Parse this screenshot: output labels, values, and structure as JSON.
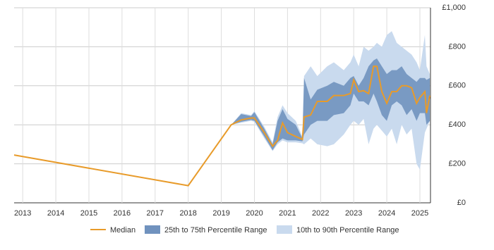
{
  "chart_data": {
    "type": "line",
    "x": [
      2012.74,
      2018.0,
      2019.3,
      2019.6,
      2019.9,
      2020.0,
      2020.3,
      2020.55,
      2020.7,
      2020.85,
      2021.0,
      2021.25,
      2021.45,
      2021.5,
      2021.7,
      2021.9,
      2022.2,
      2022.4,
      2022.7,
      2022.9,
      2023.0,
      2023.15,
      2023.3,
      2023.45,
      2023.6,
      2023.7,
      2023.85,
      2024.0,
      2024.15,
      2024.3,
      2024.45,
      2024.6,
      2024.75,
      2024.9,
      2025.0,
      2025.15,
      2025.2,
      2025.3
    ],
    "series": [
      {
        "name": "Median",
        "color": "#e89b2a",
        "values": [
          245,
          88,
          400,
          425,
          435,
          435,
          360,
          290,
          320,
          410,
          360,
          340,
          325,
          440,
          450,
          520,
          520,
          550,
          550,
          560,
          630,
          570,
          575,
          560,
          700,
          700,
          570,
          510,
          570,
          570,
          600,
          600,
          590,
          510,
          540,
          570,
          460,
          550
        ]
      },
      {
        "name": "25th to 75th Percentile Range",
        "color": "#7092be",
        "low": [
          null,
          null,
          400,
          415,
          425,
          420,
          340,
          270,
          310,
          330,
          320,
          320,
          315,
          350,
          400,
          420,
          420,
          450,
          460,
          500,
          560,
          520,
          520,
          500,
          560,
          520,
          450,
          420,
          500,
          520,
          500,
          450,
          480,
          420,
          460,
          460,
          400,
          420
        ],
        "high": [
          null,
          null,
          400,
          455,
          445,
          465,
          380,
          300,
          420,
          480,
          430,
          400,
          330,
          640,
          530,
          580,
          600,
          620,
          600,
          640,
          650,
          600,
          640,
          700,
          730,
          740,
          700,
          660,
          680,
          680,
          700,
          660,
          640,
          620,
          640,
          640,
          630,
          640
        ]
      },
      {
        "name": "10th to 90th Percentile Range",
        "color": "#c9daee",
        "low": [
          null,
          null,
          400,
          410,
          420,
          415,
          330,
          265,
          300,
          320,
          310,
          310,
          305,
          300,
          330,
          300,
          290,
          300,
          350,
          400,
          420,
          400,
          430,
          300,
          380,
          400,
          370,
          340,
          380,
          300,
          400,
          350,
          380,
          200,
          170,
          360,
          380,
          420
        ],
        "high": [
          null,
          null,
          400,
          460,
          450,
          470,
          390,
          310,
          440,
          500,
          460,
          420,
          340,
          650,
          700,
          650,
          700,
          720,
          680,
          720,
          760,
          700,
          800,
          780,
          800,
          820,
          800,
          860,
          880,
          820,
          800,
          780,
          760,
          720,
          680,
          860,
          700,
          660
        ]
      }
    ],
    "xlim": [
      2012.74,
      2025.32
    ],
    "xticks": [
      2013,
      2014,
      2015,
      2016,
      2017,
      2018,
      2019,
      2020,
      2021,
      2022,
      2023,
      2024,
      2025
    ],
    "ylim": [
      0,
      1000
    ],
    "yticks": [
      {
        "value": 0,
        "label": "£0"
      },
      {
        "value": 200,
        "label": "£200"
      },
      {
        "value": 400,
        "label": "£400"
      },
      {
        "value": 600,
        "label": "£600"
      },
      {
        "value": 800,
        "label": "£800"
      },
      {
        "value": 1000,
        "label": "£1,000"
      }
    ],
    "grid": true
  }
}
